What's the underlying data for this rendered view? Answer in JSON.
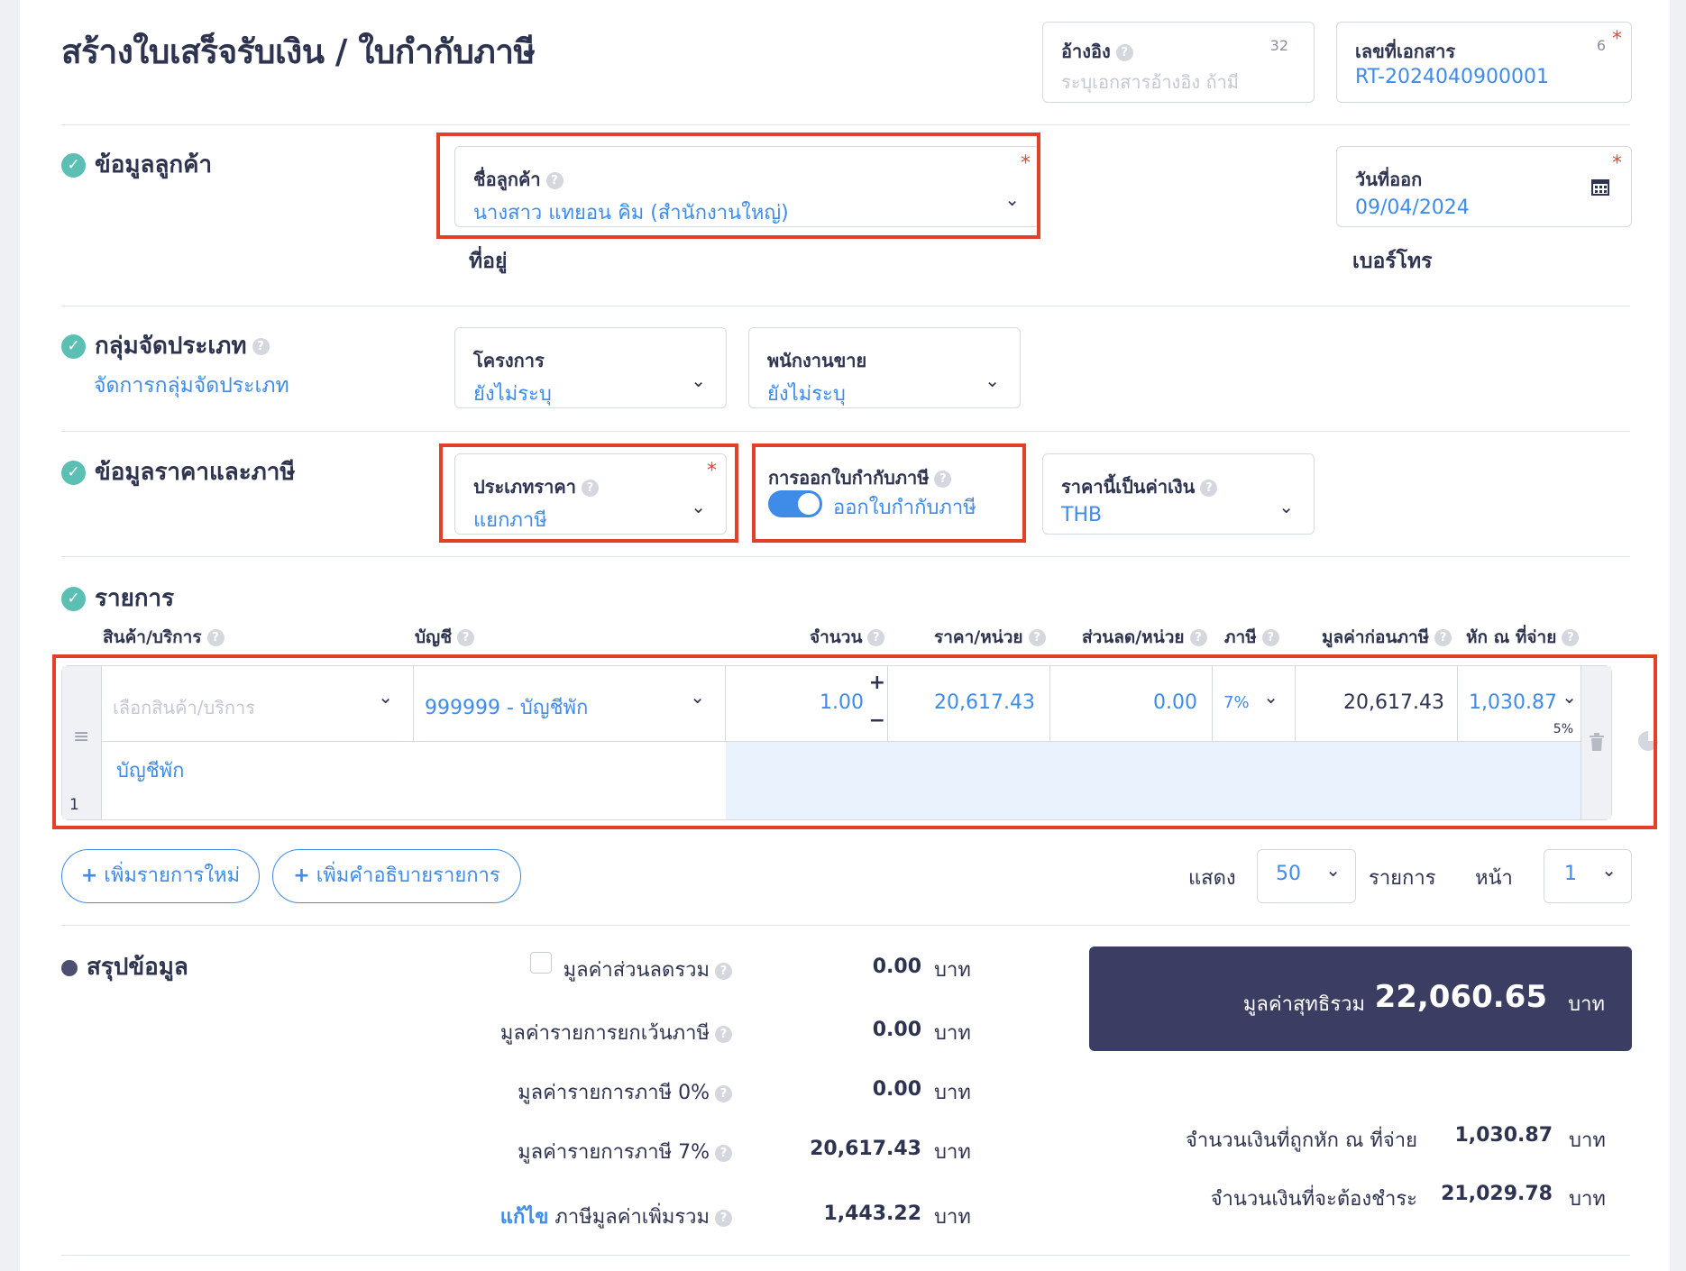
{
  "page_title": "สร้างใบเสร็จรับเงิน / ใบกำกับภาษี",
  "reference": {
    "label": "อ้างอิง",
    "counter": "32",
    "placeholder": "ระบุเอกสารอ้างอิง ถ้ามี"
  },
  "doc_number": {
    "label": "เลขที่เอกสาร",
    "counter": "6",
    "value": "RT-2024040900001"
  },
  "required_mark": "*",
  "customer_section": {
    "title": "ข้อมูลลูกค้า",
    "customer_name_label": "ชื่อลูกค้า",
    "customer_name_value": "นางสาว แทยอน คิม (สำนักงานใหญ่)",
    "address_label": "ที่อยู่",
    "issue_date_label": "วันที่ออก",
    "issue_date_value": "09/04/2024",
    "phone_label": "เบอร์โทร"
  },
  "classification_section": {
    "title": "กลุ่มจัดประเภท",
    "manage_link": "จัดการกลุ่มจัดประเภท",
    "project_label": "โครงการ",
    "project_value": "ยังไม่ระบุ",
    "salesperson_label": "พนักงานขาย",
    "salesperson_value": "ยังไม่ระบุ"
  },
  "pricing_section": {
    "title": "ข้อมูลราคาและภาษี",
    "price_type_label": "ประเภทราคา",
    "price_type_value": "แยกภาษี",
    "tax_invoice_label": "การออกใบกำกับภาษี",
    "tax_invoice_toggle_text": "ออกใบกำกับภาษี",
    "tax_invoice_on": true,
    "currency_label": "ราคานี้เป็นค่าเงิน",
    "currency_value": "THB"
  },
  "items_section": {
    "title": "รายการ",
    "columns": [
      "สินค้า/บริการ",
      "บัญชี",
      "จำนวน",
      "ราคา/หน่วย",
      "ส่วนลด/หน่วย",
      "ภาษี",
      "มูลค่าก่อนภาษี",
      "หัก ณ ที่จ่าย"
    ],
    "rows": [
      {
        "index": "1",
        "product_placeholder": "เลือกสินค้า/บริการ",
        "account": "999999 - บัญชีพัก",
        "quantity": "1.00",
        "unit_price": "20,617.43",
        "discount": "0.00",
        "vat": "7%",
        "pre_tax": "20,617.43",
        "withholding": "1,030.87",
        "withholding_rate": "5%",
        "description": "บัญชีพัก"
      }
    ],
    "add_item_button": "เพิ่มรายการใหม่",
    "add_description_button": "เพิ่มคำอธิบายรายการ",
    "show_label": "แสดง",
    "page_size": "50",
    "items_label": "รายการ",
    "page_label": "หน้า",
    "page_number": "1"
  },
  "summary_section": {
    "title": "สรุปข้อมูล",
    "discount_total_label": "มูลค่าส่วนลดรวม",
    "discount_total_value": "0.00",
    "exempt_label": "มูลค่ารายการยกเว้นภาษี",
    "exempt_value": "0.00",
    "zero_rate_label": "มูลค่ารายการภาษี 0%",
    "zero_rate_value": "0.00",
    "vat7_label": "มูลค่ารายการภาษี 7%",
    "vat7_value": "20,617.43",
    "edit_link": "แก้ไข",
    "vat_total_label": "ภาษีมูลค่าเพิ่มรวม",
    "vat_total_value": "1,443.22",
    "unit": "บาท",
    "net_total_label": "มูลค่าสุทธิรวม",
    "net_total_value": "22,060.65",
    "withheld_label": "จำนวนเงินที่ถูกหัก ณ ที่จ่าย",
    "withheld_value": "1,030.87",
    "payable_label": "จำนวนเงินที่จะต้องชำระ",
    "payable_value": "21,029.78"
  },
  "icons": {
    "help": "?",
    "check": "✓",
    "chevron": "⌄",
    "plus": "+",
    "minus": "−",
    "calendar": "calendar-icon",
    "trash": "trash-icon",
    "pie": "pie-chart-icon",
    "drag": "drag-handle-icon"
  },
  "colors": {
    "accent": "#3f8be8",
    "check": "#5bc0b3",
    "highlight": "#e3402a",
    "summary_bg": "#3b3d62",
    "text": "#2e3450"
  }
}
